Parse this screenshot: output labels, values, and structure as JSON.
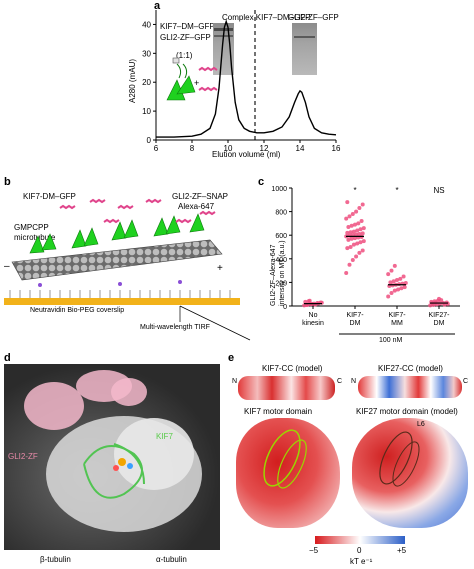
{
  "panel_a": {
    "letter": "a",
    "legend_kif7": "KIF7–DM–GFP",
    "legend_gli2": "GLI2-ZF–GFP",
    "ratio": "(1:1)",
    "complex_label": "Complex KIF7–DM–GFP",
    "gli2_label": "GLI2-ZF–GFP",
    "ylabel": "A280 (mAU)",
    "xlabel": "Elution volume (ml)",
    "chart_data": {
      "type": "line",
      "xlabel": "Elution volume (ml)",
      "ylabel": "A280 (mAU)",
      "xlim": [
        6,
        16
      ],
      "ylim": [
        0,
        45
      ],
      "x_ticks": [
        6,
        8,
        10,
        12,
        14,
        16
      ],
      "y_ticks": [
        0,
        10,
        20,
        30,
        40
      ],
      "dashed_line_x": 11.5,
      "series": [
        {
          "x": [
            6,
            7,
            8,
            8.5,
            9,
            9.3,
            9.5,
            9.7,
            9.8,
            9.9,
            10.0,
            10.1,
            10.2,
            10.4,
            10.6,
            10.9,
            11.2,
            11.6,
            12,
            12.5,
            13,
            13.4,
            13.7,
            13.9,
            14.0,
            14.1,
            14.3,
            14.5,
            14.8,
            15.2,
            15.6,
            16
          ],
          "y": [
            1,
            1,
            1.3,
            2,
            4,
            9,
            18,
            33,
            39,
            41,
            39,
            33,
            25,
            13,
            7,
            4,
            3,
            2.5,
            2.5,
            3,
            4.5,
            8,
            13,
            16,
            17,
            16.5,
            13,
            8,
            4,
            2.5,
            2,
            1.8
          ]
        }
      ]
    }
  },
  "panel_b": {
    "letter": "b",
    "kif7_label": "KIF7-DM–GFP",
    "gli2_label_1": "GLI2-ZF–SNAP",
    "gli2_label_2": "Alexa-647",
    "mt_label_1": "GMPCPP",
    "mt_label_2": "microtubule",
    "minus": "–",
    "plus": "+",
    "coverslip": "Neutravidin Bio-PEG coverslip",
    "tirf": "Multi-wavelength TIRF"
  },
  "panel_c": {
    "letter": "c",
    "ylabel_1": "GLI2-ZF–Alexa-647",
    "ylabel_2": "intensity on MT (a.u.)",
    "conc_label": "100 nM",
    "chart_data": {
      "type": "scatter",
      "categories": [
        "No kinesin",
        "KIF7-DM",
        "KIF7-MM",
        "KIF27-DM"
      ],
      "tick_labels": [
        [
          "No",
          "kinesin"
        ],
        [
          "KIF7-",
          "DM"
        ],
        [
          "KIF7-",
          "MM"
        ],
        [
          "KIF27-",
          "DM"
        ]
      ],
      "ylim": [
        0,
        1000
      ],
      "y_ticks": [
        0,
        200,
        400,
        600,
        800,
        1000
      ],
      "medians": [
        20,
        590,
        180,
        25
      ],
      "significance": [
        "",
        "*",
        "*",
        "NS"
      ],
      "points": [
        [
          5,
          10,
          15,
          20,
          25,
          30,
          35,
          40,
          18,
          12,
          22,
          28,
          8,
          45
        ],
        [
          280,
          350,
          390,
          420,
          450,
          470,
          490,
          500,
          520,
          530,
          540,
          550,
          560,
          570,
          575,
          580,
          585,
          590,
          595,
          600,
          605,
          610,
          615,
          620,
          625,
          630,
          640,
          650,
          660,
          670,
          680,
          690,
          700,
          720,
          740,
          760,
          780,
          800,
          830,
          860,
          880
        ],
        [
          80,
          110,
          130,
          140,
          150,
          160,
          170,
          175,
          180,
          185,
          190,
          195,
          200,
          210,
          220,
          230,
          250,
          270,
          300,
          340
        ],
        [
          5,
          10,
          15,
          20,
          25,
          30,
          35,
          40,
          45,
          50,
          12,
          18,
          22,
          28,
          60
        ]
      ]
    }
  },
  "panel_d": {
    "letter": "d",
    "gli2": "GLI2-ZF",
    "kif7": "KIF7",
    "beta": "β-tubulin",
    "alpha": "α-tubulin"
  },
  "panel_e": {
    "letter": "e",
    "kif7cc": "KIF7-CC (model)",
    "kif27cc": "KIF27-CC (model)",
    "n1": "N",
    "c1": "C",
    "n2": "N",
    "c2": "C",
    "kif7md": "KIF7 motor domain",
    "kif27md": "KIF27 motor domain (model)",
    "l6": "L6",
    "scale_min": "−5",
    "scale_mid": "0",
    "scale_max": "+5",
    "unit": "kT e⁻¹",
    "colors": {
      "negative": "#d7191c",
      "neutral": "#ffffff",
      "positive": "#2c5fc7",
      "kif7_green": "#9bd600",
      "gli2_pink": "#e88aa8"
    }
  }
}
